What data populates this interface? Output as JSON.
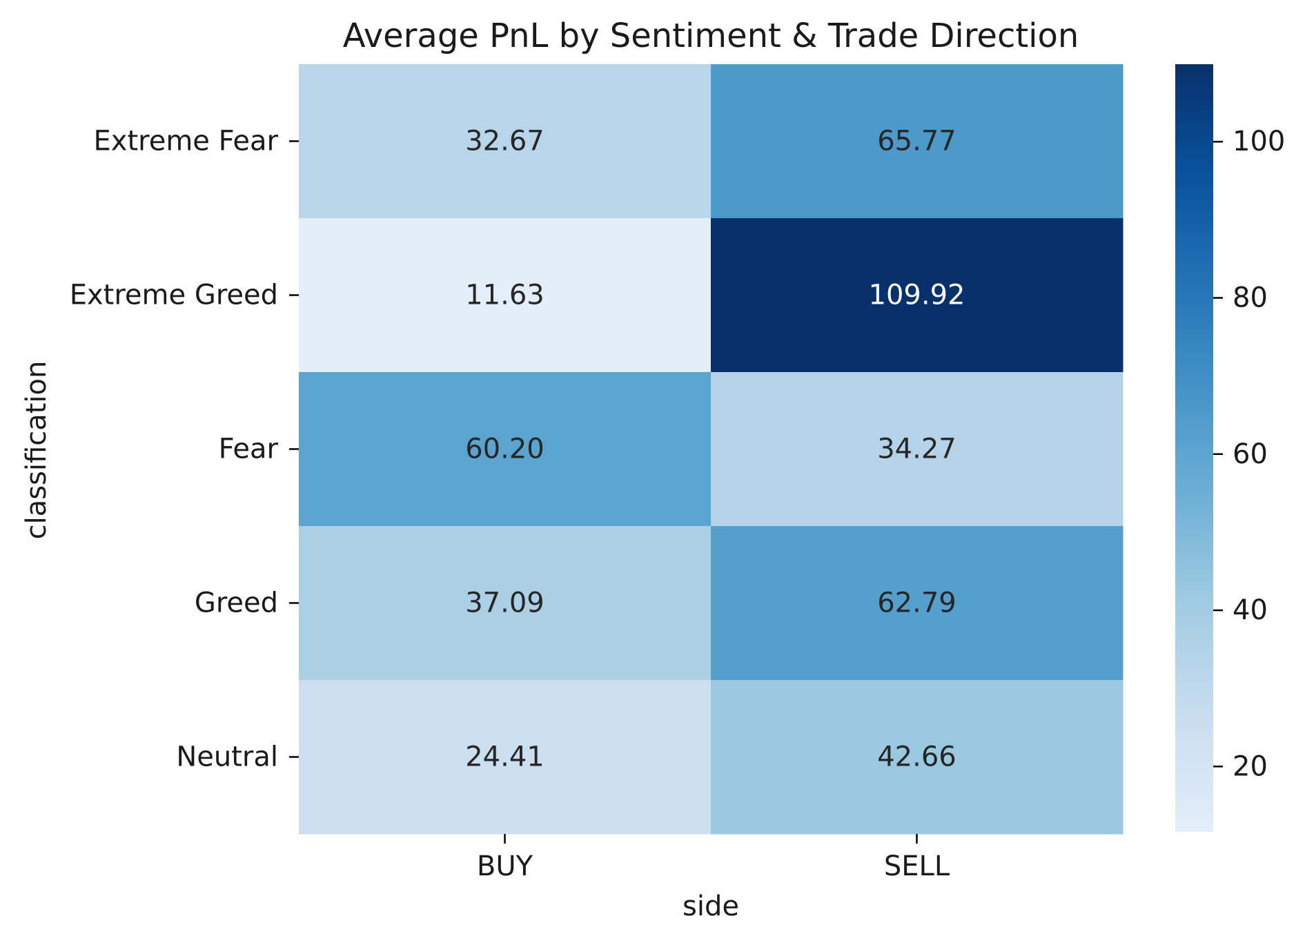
{
  "chart_data": {
    "type": "heatmap",
    "title": "Average PnL by Sentiment & Trade Direction",
    "xlabel": "side",
    "ylabel": "classification",
    "x_categories": [
      "BUY",
      "SELL"
    ],
    "y_categories": [
      "Extreme Fear",
      "Extreme Greed",
      "Fear",
      "Greed",
      "Neutral"
    ],
    "values": [
      [
        32.67,
        65.77
      ],
      [
        11.63,
        109.92
      ],
      [
        60.2,
        34.27
      ],
      [
        37.09,
        62.79
      ],
      [
        24.41,
        42.66
      ]
    ],
    "value_labels": [
      [
        "32.67",
        "65.77"
      ],
      [
        "11.63",
        "109.92"
      ],
      [
        "60.20",
        "34.27"
      ],
      [
        "37.09",
        "62.79"
      ],
      [
        "24.41",
        "42.66"
      ]
    ],
    "colormap": "Blues",
    "colorbar": {
      "range": [
        11.63,
        109.92
      ],
      "ticks": [
        20,
        40,
        60,
        80,
        100
      ],
      "tick_labels": [
        "20",
        "40",
        "60",
        "80",
        "100"
      ]
    },
    "grid": false,
    "legend": "colorbar-right"
  }
}
